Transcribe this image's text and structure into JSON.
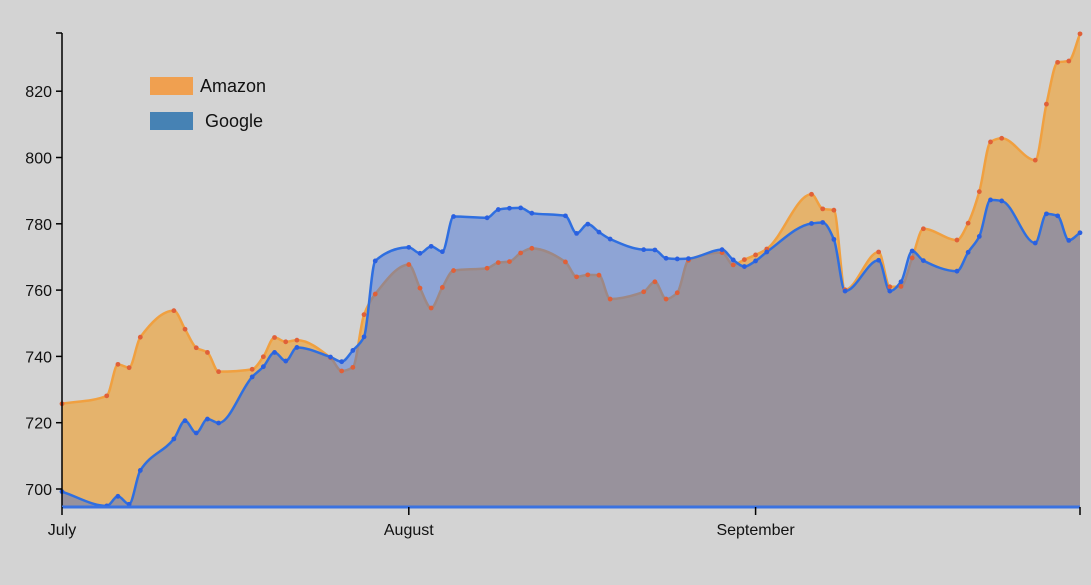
{
  "chart_data": {
    "type": "area",
    "title": "",
    "xlabel": "",
    "ylabel": "",
    "x_ticks": [
      "July",
      "August",
      "September"
    ],
    "y_ticks": [
      700,
      720,
      740,
      760,
      780,
      800,
      820
    ],
    "ylim": [
      694.5,
      837.8
    ],
    "grid": false,
    "legend_position": "top-left",
    "x": [
      "2016-07-01",
      "2016-07-05",
      "2016-07-06",
      "2016-07-07",
      "2016-07-08",
      "2016-07-11",
      "2016-07-12",
      "2016-07-13",
      "2016-07-14",
      "2016-07-15",
      "2016-07-18",
      "2016-07-19",
      "2016-07-20",
      "2016-07-21",
      "2016-07-22",
      "2016-07-25",
      "2016-07-26",
      "2016-07-27",
      "2016-07-28",
      "2016-07-29",
      "2016-08-01",
      "2016-08-02",
      "2016-08-03",
      "2016-08-04",
      "2016-08-05",
      "2016-08-08",
      "2016-08-09",
      "2016-08-10",
      "2016-08-11",
      "2016-08-12",
      "2016-08-15",
      "2016-08-16",
      "2016-08-17",
      "2016-08-18",
      "2016-08-19",
      "2016-08-22",
      "2016-08-23",
      "2016-08-24",
      "2016-08-25",
      "2016-08-26",
      "2016-08-29",
      "2016-08-30",
      "2016-08-31",
      "2016-09-01",
      "2016-09-02",
      "2016-09-06",
      "2016-09-07",
      "2016-09-08",
      "2016-09-09",
      "2016-09-12",
      "2016-09-13",
      "2016-09-14",
      "2016-09-15",
      "2016-09-16",
      "2016-09-19",
      "2016-09-20",
      "2016-09-21",
      "2016-09-22",
      "2016-09-23",
      "2016-09-26",
      "2016-09-27",
      "2016-09-28",
      "2016-09-29",
      "2016-09-30"
    ],
    "series": [
      {
        "name": "Amazon",
        "color": "#f0a050",
        "values": [
          725.7,
          728.1,
          737.6,
          736.6,
          745.8,
          753.8,
          748.2,
          742.6,
          741.2,
          735.4,
          736.1,
          739.9,
          745.7,
          744.4,
          744.9,
          739.6,
          735.6,
          736.7,
          752.6,
          758.8,
          767.7,
          760.6,
          754.6,
          760.8,
          765.9,
          766.6,
          768.3,
          768.6,
          771.2,
          772.6,
          768.5,
          764.0,
          764.6,
          764.5,
          757.3,
          759.5,
          762.5,
          757.3,
          759.2,
          769.0,
          771.3,
          767.6,
          769.2,
          770.6,
          772.4,
          788.9,
          784.5,
          784.1,
          760.1,
          771.5,
          761.0,
          761.1,
          769.7,
          778.5,
          775.1,
          780.2,
          789.7,
          804.7,
          805.8,
          799.2,
          816.1,
          828.7,
          829.1,
          837.3
        ]
      },
      {
        "name": "Google",
        "color": "#4a80d8",
        "values": [
          699.2,
          694.9,
          697.8,
          695.4,
          705.6,
          715.1,
          720.6,
          716.9,
          721.1,
          719.9,
          733.8,
          736.9,
          741.2,
          738.6,
          742.7,
          739.8,
          738.4,
          741.8,
          745.9,
          768.8,
          772.9,
          771.1,
          773.2,
          771.6,
          782.2,
          781.8,
          784.3,
          784.7,
          784.8,
          783.2,
          782.4,
          777.1,
          779.9,
          777.5,
          775.4,
          772.2,
          772.1,
          769.6,
          769.4,
          769.5,
          772.2,
          769.1,
          767.1,
          768.8,
          771.5,
          780.1,
          780.4,
          775.3,
          759.7,
          769.0,
          759.7,
          762.5,
          771.8,
          768.9,
          765.7,
          771.4,
          776.2,
          787.2,
          786.9,
          774.2,
          783.0,
          782.4,
          775.0,
          777.3
        ]
      }
    ]
  }
}
